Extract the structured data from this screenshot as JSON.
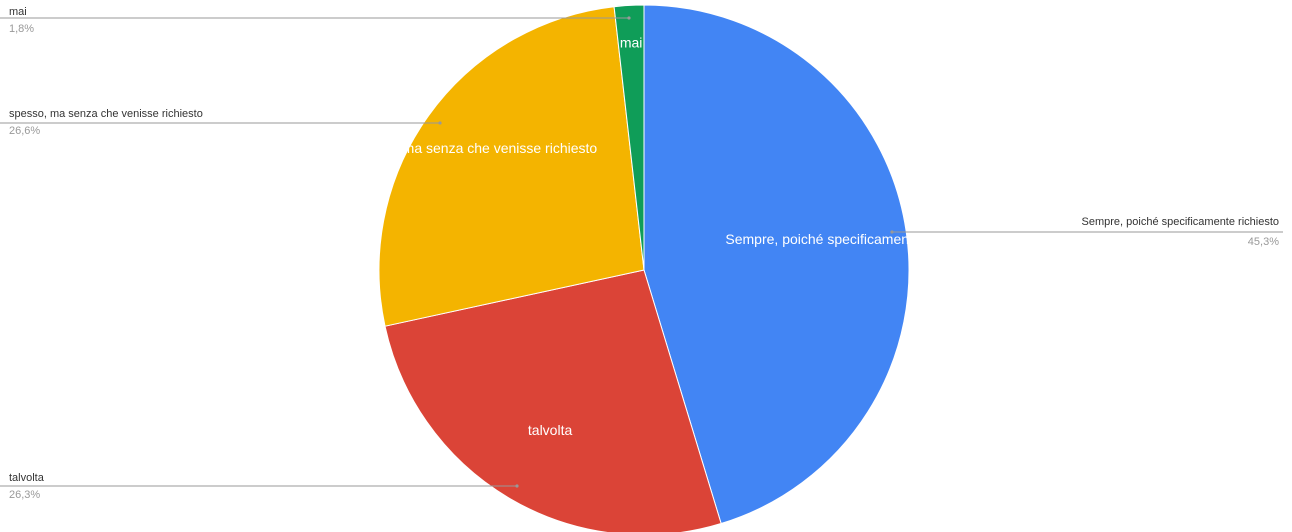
{
  "chart_data": {
    "type": "pie",
    "title": "",
    "slices": [
      {
        "label": "Sempre, poiché specificamente richiesto",
        "value": 45.3,
        "display": "45,3%",
        "color": "#4285f4"
      },
      {
        "label": "talvolta",
        "value": 26.3,
        "display": "26,3%",
        "color": "#db4437"
      },
      {
        "label": "spesso, ma senza che venisse richiesto",
        "value": 26.6,
        "display": "26,6%",
        "color": "#f4b400"
      },
      {
        "label": "mai",
        "value": 1.8,
        "display": "1,8%",
        "color": "#0f9d58"
      }
    ],
    "start": "12 o'clock",
    "direction": "clockwise",
    "legend": "callout labels"
  }
}
